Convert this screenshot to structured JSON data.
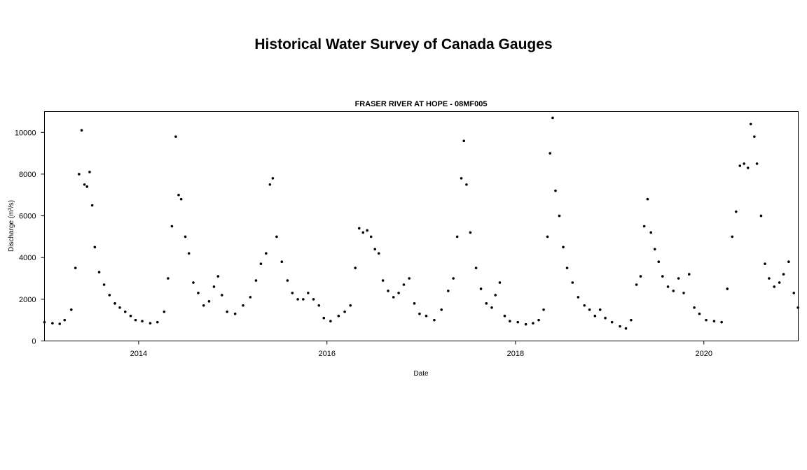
{
  "title": "Historical Water Survey of Canada Gauges",
  "chart_data": {
    "type": "scatter",
    "title": "FRASER RIVER AT HOPE - 08MF005",
    "xlabel": "Date",
    "ylabel": "Discharge (m³/s)",
    "xlim": [
      "2013-01-01",
      "2021-01-01"
    ],
    "ylim": [
      0,
      11000
    ],
    "yticks": [
      0,
      2000,
      4000,
      6000,
      8000,
      10000
    ],
    "xticks": [
      "2014",
      "2016",
      "2018",
      "2020"
    ],
    "grid": false,
    "point_color": "#000000",
    "series": [
      {
        "x": [
          "2013-01-01",
          "2013-02-01",
          "2013-03-01",
          "2013-03-20",
          "2013-04-15",
          "2013-05-01",
          "2013-05-15",
          "2013-05-25",
          "2013-06-05",
          "2013-06-15",
          "2013-06-25",
          "2013-07-05",
          "2013-07-15",
          "2013-08-01",
          "2013-08-20",
          "2013-09-10",
          "2013-10-01",
          "2013-10-20",
          "2013-11-10",
          "2013-12-01",
          "2013-12-20",
          "2014-01-15",
          "2014-02-15",
          "2014-03-15",
          "2014-04-10",
          "2014-04-25",
          "2014-05-10",
          "2014-05-25",
          "2014-06-05",
          "2014-06-15",
          "2014-07-01",
          "2014-07-15",
          "2014-08-01",
          "2014-08-20",
          "2014-09-10",
          "2014-10-01",
          "2014-10-20",
          "2014-11-05",
          "2014-11-20",
          "2014-12-10",
          "2015-01-10",
          "2015-02-10",
          "2015-03-10",
          "2015-04-01",
          "2015-04-20",
          "2015-05-10",
          "2015-05-25",
          "2015-06-05",
          "2015-06-20",
          "2015-07-10",
          "2015-08-01",
          "2015-08-20",
          "2015-09-10",
          "2015-10-01",
          "2015-10-20",
          "2015-11-10",
          "2015-12-01",
          "2015-12-20",
          "2016-01-15",
          "2016-02-15",
          "2016-03-10",
          "2016-04-01",
          "2016-04-20",
          "2016-05-05",
          "2016-05-20",
          "2016-06-05",
          "2016-06-20",
          "2016-07-05",
          "2016-07-20",
          "2016-08-05",
          "2016-08-25",
          "2016-09-15",
          "2016-10-05",
          "2016-10-25",
          "2016-11-15",
          "2016-12-05",
          "2016-12-25",
          "2017-01-20",
          "2017-02-20",
          "2017-03-20",
          "2017-04-15",
          "2017-05-05",
          "2017-05-20",
          "2017-06-05",
          "2017-06-15",
          "2017-06-25",
          "2017-07-10",
          "2017-08-01",
          "2017-08-20",
          "2017-09-10",
          "2017-10-01",
          "2017-10-15",
          "2017-11-01",
          "2017-11-20",
          "2017-12-10",
          "2018-01-10",
          "2018-02-10",
          "2018-03-10",
          "2018-04-01",
          "2018-04-20",
          "2018-05-05",
          "2018-05-15",
          "2018-05-25",
          "2018-06-05",
          "2018-06-20",
          "2018-07-05",
          "2018-07-20",
          "2018-08-10",
          "2018-09-01",
          "2018-09-25",
          "2018-10-15",
          "2018-11-05",
          "2018-11-25",
          "2018-12-15",
          "2019-01-10",
          "2019-02-10",
          "2019-03-05",
          "2019-03-25",
          "2019-04-15",
          "2019-05-01",
          "2019-05-15",
          "2019-05-28",
          "2019-06-10",
          "2019-06-25",
          "2019-07-10",
          "2019-07-25",
          "2019-08-15",
          "2019-09-05",
          "2019-09-25",
          "2019-10-15",
          "2019-11-05",
          "2019-11-25",
          "2019-12-15",
          "2020-01-10",
          "2020-02-10",
          "2020-03-10",
          "2020-04-01",
          "2020-04-20",
          "2020-05-05",
          "2020-05-20",
          "2020-06-05",
          "2020-06-20",
          "2020-07-01",
          "2020-07-15",
          "2020-07-25",
          "2020-08-10",
          "2020-08-25",
          "2020-09-10",
          "2020-09-30",
          "2020-10-20",
          "2020-11-05",
          "2020-11-25",
          "2020-12-15",
          "2020-12-31"
        ],
        "y": [
          900,
          850,
          820,
          1000,
          1500,
          3500,
          8000,
          10100,
          7500,
          7400,
          8100,
          6500,
          4500,
          3300,
          2700,
          2200,
          1800,
          1600,
          1400,
          1200,
          1000,
          950,
          850,
          900,
          1400,
          3000,
          5500,
          9800,
          7000,
          6800,
          5000,
          4200,
          2800,
          2300,
          1700,
          1900,
          2600,
          3100,
          2200,
          1400,
          1300,
          1700,
          2100,
          2900,
          3700,
          4200,
          7500,
          7800,
          5000,
          3800,
          2900,
          2300,
          2000,
          2000,
          2300,
          2000,
          1700,
          1100,
          950,
          1200,
          1400,
          1700,
          3500,
          5400,
          5200,
          5300,
          5000,
          4400,
          4200,
          2900,
          2400,
          2100,
          2300,
          2700,
          3000,
          1800,
          1300,
          1200,
          1000,
          1500,
          2400,
          3000,
          5000,
          7800,
          9600,
          7500,
          5200,
          3500,
          2500,
          1800,
          1600,
          2200,
          2800,
          1200,
          950,
          900,
          800,
          850,
          1000,
          1500,
          5000,
          9000,
          10700,
          7200,
          6000,
          4500,
          3500,
          2800,
          2100,
          1700,
          1500,
          1200,
          1500,
          1100,
          900,
          700,
          600,
          1000,
          2700,
          3100,
          5500,
          6800,
          5200,
          4400,
          3800,
          3100,
          2600,
          2400,
          3000,
          2300,
          3200,
          1600,
          1300,
          1000,
          950,
          900,
          2500,
          5000,
          6200,
          8400,
          8500,
          8300,
          10400,
          9800,
          8500,
          6000,
          3700,
          3000,
          2600,
          2800,
          3200,
          3800,
          2300,
          1600
        ]
      }
    ]
  }
}
